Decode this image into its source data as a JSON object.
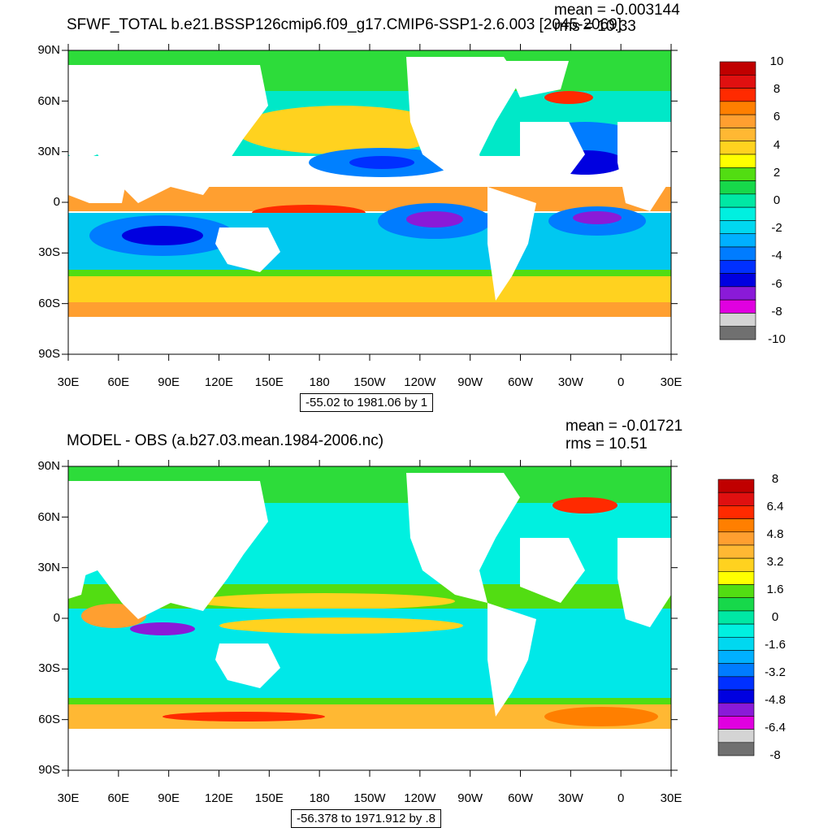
{
  "top": {
    "title": "SFWF_TOTAL b.e21.BSSP126cmip6.f09_g17.CMIP6-SSP1-2.6.003 [2045-2069]",
    "mean_text": "mean = -0.003144",
    "rms_text": "rms = 10.33",
    "info_text": "-55.02 to 1981.06 by 1",
    "colorbar_labels": [
      "10",
      "8",
      "6",
      "4",
      "2",
      "0",
      "-2",
      "-4",
      "-6",
      "-8",
      "-10"
    ],
    "colorbar_colors": [
      "#c00000",
      "#e01010",
      "#ff2a00",
      "#ff7f00",
      "#ff9f30",
      "#ffb833",
      "#ffd21f",
      "#ffff00",
      "#52dd12",
      "#17d84a",
      "#00e8a4",
      "#00f0e0",
      "#00d8f0",
      "#00b0ff",
      "#007cff",
      "#0030ff",
      "#0000e0",
      "#8a1ad8",
      "#e000e0",
      "#d4d4d4",
      "#707070"
    ]
  },
  "bottom": {
    "title": "MODEL - OBS (a.b27.03.mean.1984-2006.nc)",
    "mean_text": "mean = -0.01721",
    "rms_text": "rms = 10.51",
    "info_text": "-56.378 to 1971.912 by .8",
    "colorbar_labels": [
      "8",
      "6.4",
      "4.8",
      "3.2",
      "1.6",
      "0",
      "-1.6",
      "-3.2",
      "-4.8",
      "-6.4",
      "-8"
    ],
    "colorbar_colors": [
      "#c00000",
      "#e01010",
      "#ff2a00",
      "#ff7f00",
      "#ff9f30",
      "#ffb833",
      "#ffd21f",
      "#ffff00",
      "#52dd12",
      "#17d84a",
      "#00e8a4",
      "#00f0e0",
      "#00d8f0",
      "#00b0ff",
      "#007cff",
      "#0030ff",
      "#0000e0",
      "#8a1ad8",
      "#e000e0",
      "#d4d4d4",
      "#707070"
    ]
  },
  "axes": {
    "y_ticks": [
      "90N",
      "60N",
      "30N",
      "0",
      "30S",
      "60S",
      "90S"
    ],
    "x_ticks": [
      "30E",
      "60E",
      "90E",
      "120E",
      "150E",
      "180",
      "150W",
      "120W",
      "90W",
      "60W",
      "30W",
      "0",
      "30E"
    ]
  }
}
